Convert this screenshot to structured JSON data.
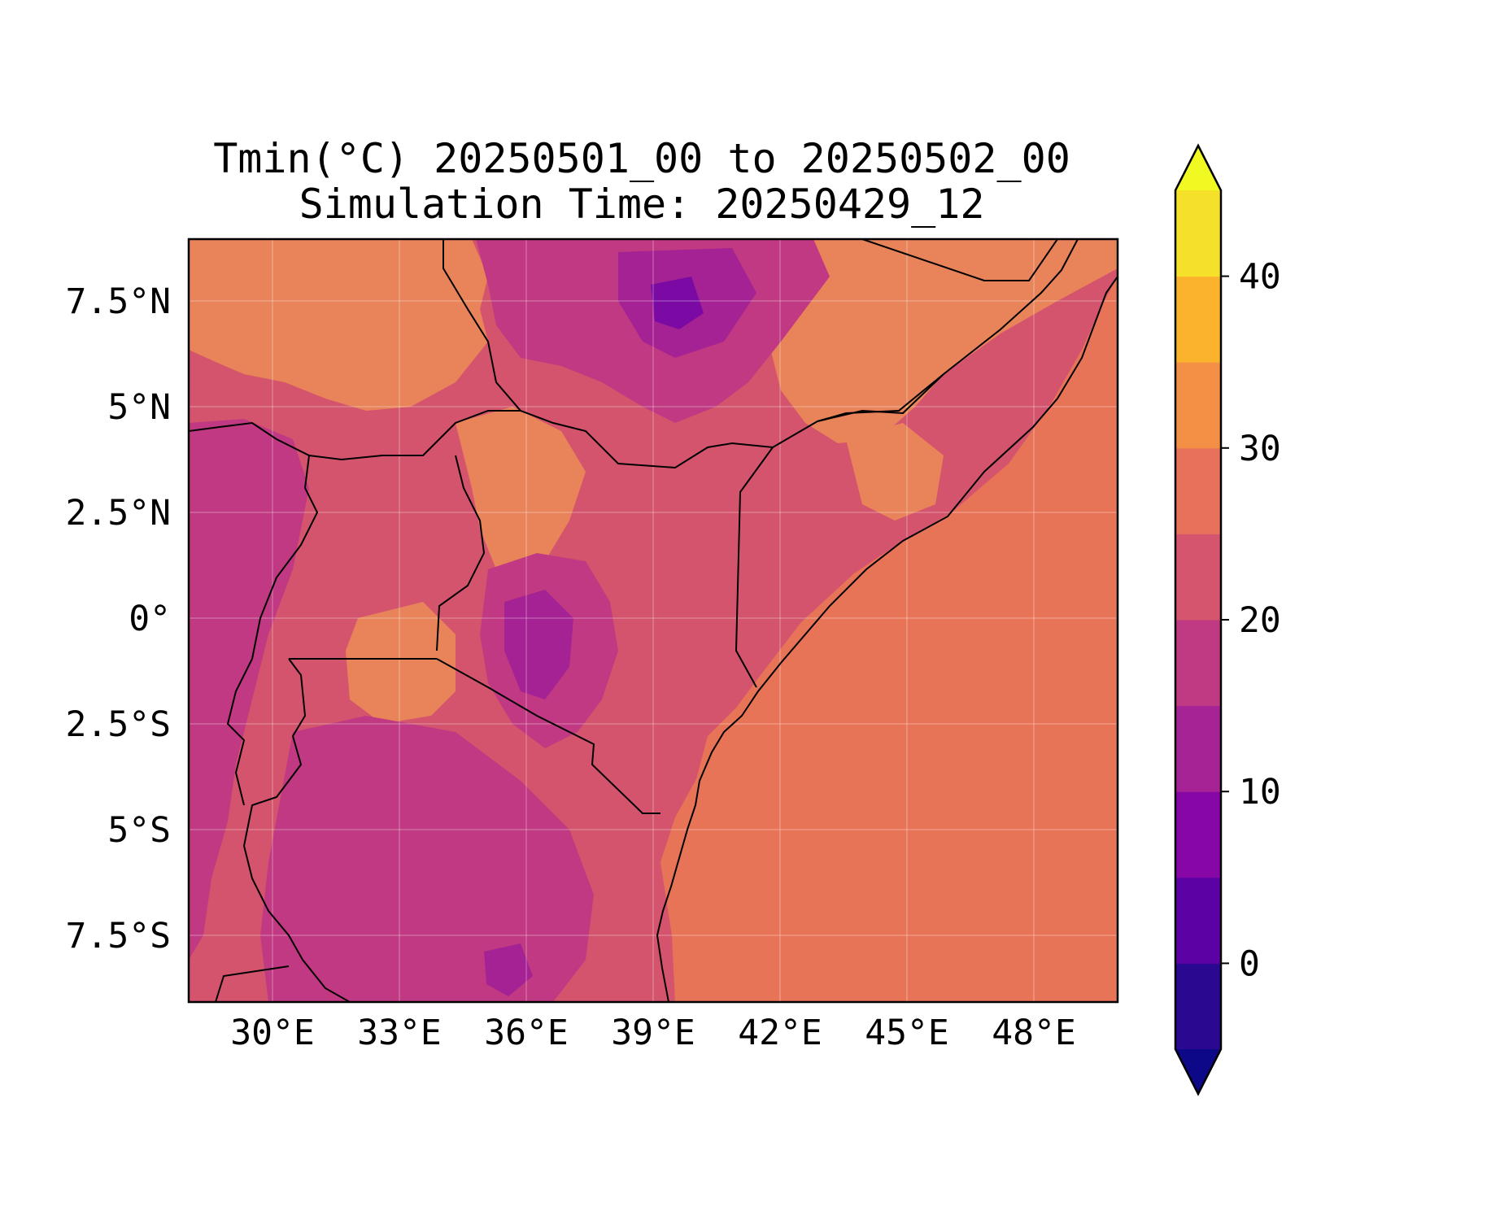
{
  "title": {
    "line1": "Tmin(°C) 20250501_00 to 20250502_00",
    "line2": "Simulation Time: 20250429_12"
  },
  "map": {
    "lon_range": [
      27.8,
      49.8
    ],
    "lat_range": [
      -9.0,
      9.0
    ],
    "x_ticks": [
      "30°E",
      "33°E",
      "36°E",
      "39°E",
      "42°E",
      "45°E",
      "48°E"
    ],
    "x_tick_values": [
      30,
      33,
      36,
      39,
      42,
      45,
      48
    ],
    "y_ticks": [
      "7.5°N",
      "5°N",
      "2.5°N",
      "0°",
      "2.5°S",
      "5°S",
      "7.5°S"
    ],
    "y_tick_values": [
      7.5,
      5,
      2.5,
      0,
      -2.5,
      -5,
      -7.5
    ],
    "gridlines": true,
    "colors": {
      "ocean": "#e87458",
      "highland_warm": "#e9845a",
      "lowland": "#d5546d",
      "plateau": "#c03982",
      "cool": "#a52294",
      "cold": "#7a0aa3"
    }
  },
  "colorbar": {
    "levels": [
      -5,
      0,
      5,
      10,
      15,
      20,
      25,
      30,
      35,
      40,
      45
    ],
    "colors": [
      "#2a0890",
      "#5c02a5",
      "#8707a6",
      "#a62395",
      "#c03a83",
      "#d5546e",
      "#e8715c",
      "#f48f46",
      "#fbb32e",
      "#f5e02a"
    ],
    "extend_min_color": "#0d0887",
    "extend_max_color": "#f0f921",
    "tick_labels": [
      "0",
      "10",
      "20",
      "30",
      "40"
    ],
    "tick_values": [
      0,
      10,
      20,
      30,
      40
    ]
  }
}
